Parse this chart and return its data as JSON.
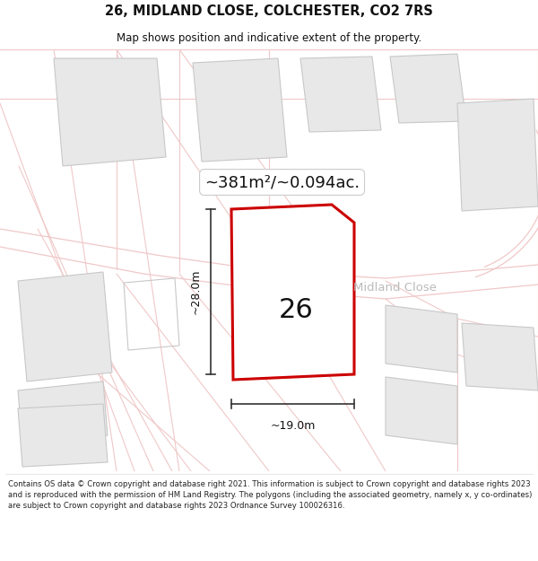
{
  "title": "26, MIDLAND CLOSE, COLCHESTER, CO2 7RS",
  "subtitle": "Map shows position and indicative extent of the property.",
  "area_text": "~381m²/~0.094ac.",
  "number_label": "26",
  "width_label": "~19.0m",
  "height_label": "~28.0m",
  "street_label": "Midland Close",
  "footer_text": "Contains OS data © Crown copyright and database right 2021. This information is subject to Crown copyright and database rights 2023 and is reproduced with the permission of HM Land Registry. The polygons (including the associated geometry, namely x, y co-ordinates) are subject to Crown copyright and database rights 2023 Ordnance Survey 100026316.",
  "bg_color": "#ffffff",
  "map_bg": "#f9f6f6",
  "road_color": "#f0c8c8",
  "plot_color": "#cc0000",
  "plot_fill": "#ffffff",
  "building_fill": "#e8e8e8",
  "building_edge": "#c8c8c8",
  "dim_color": "#333333",
  "street_label_color": "#bbbbbb",
  "title_color": "#111111",
  "footer_color": "#222222"
}
